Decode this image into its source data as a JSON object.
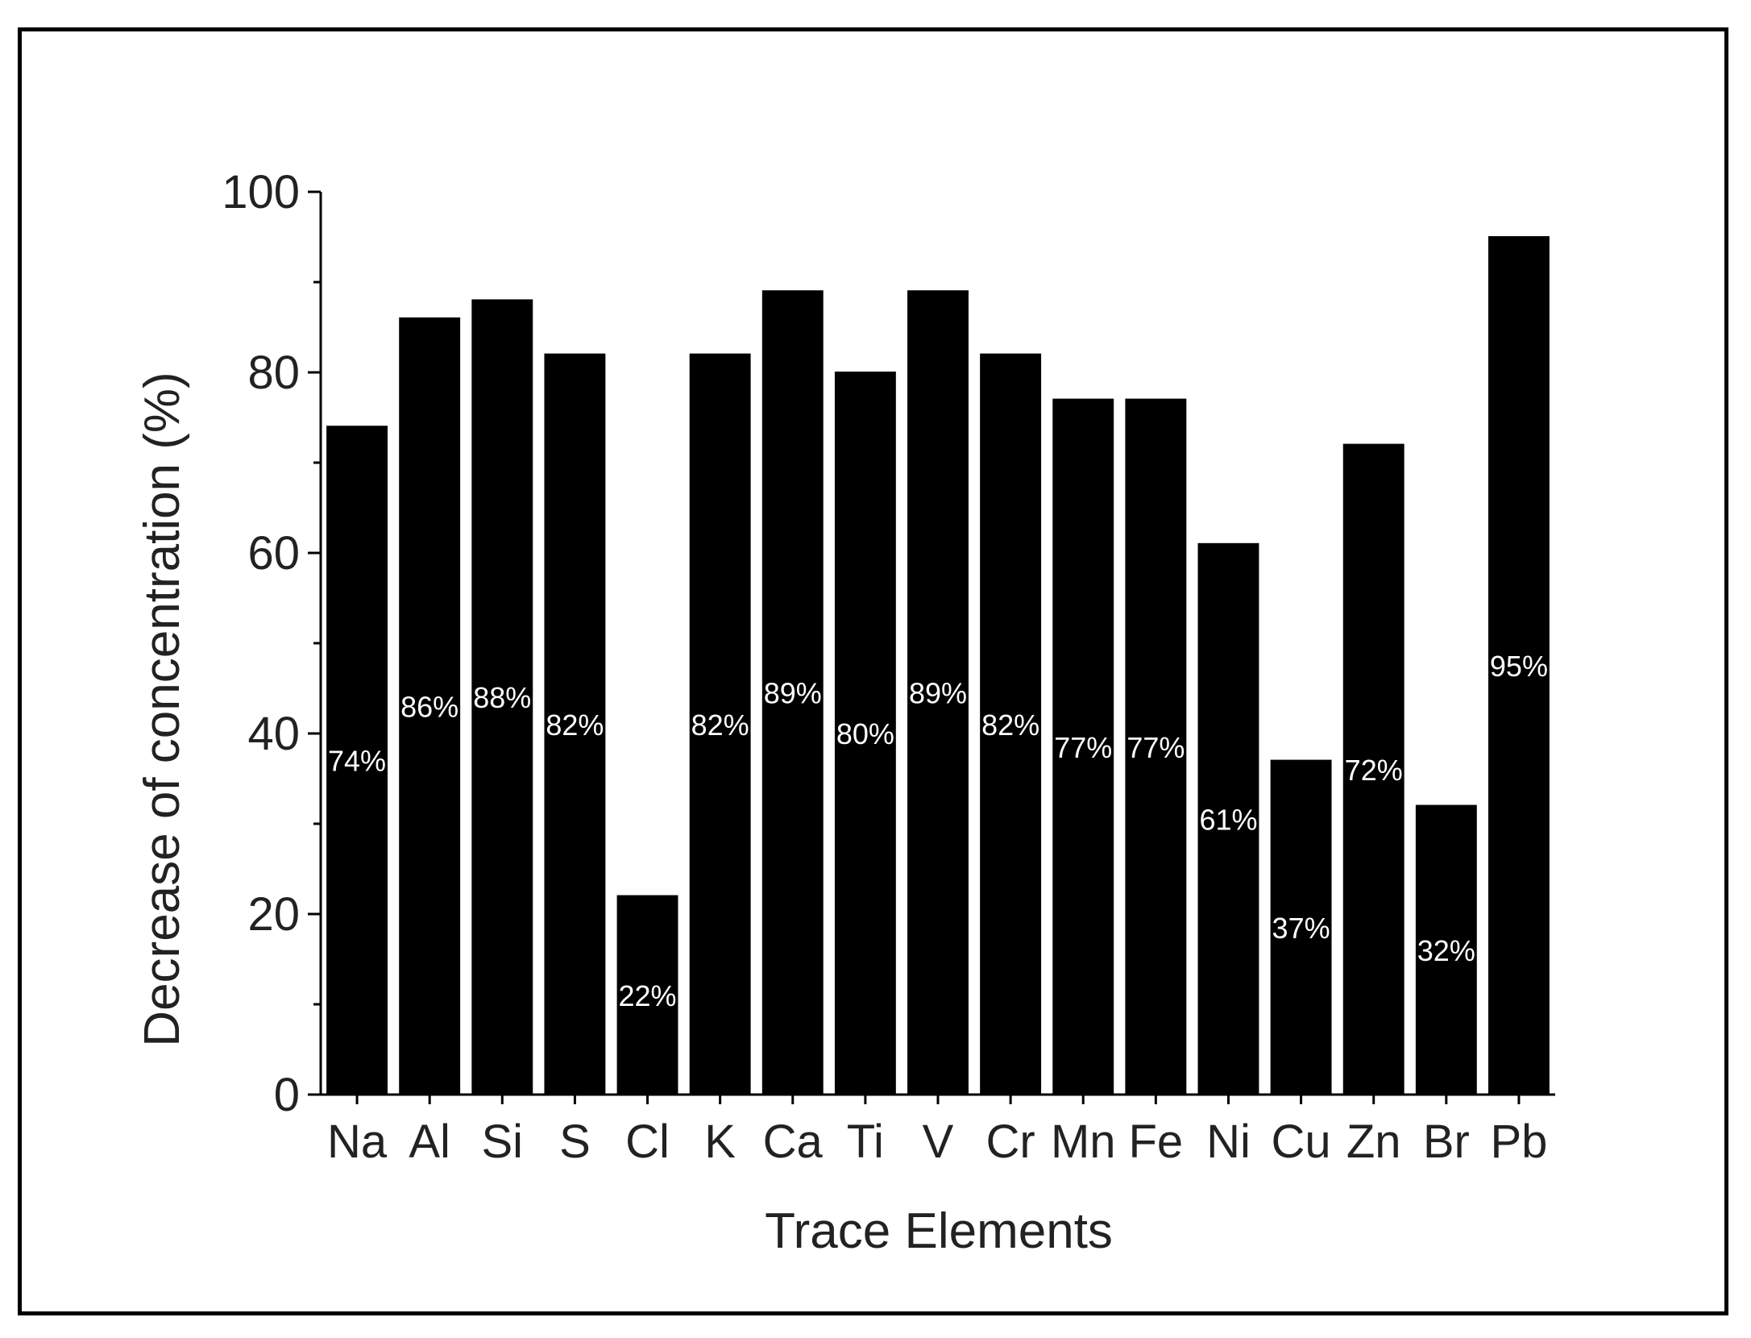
{
  "chart_data": {
    "type": "bar",
    "title": "",
    "xlabel": "Trace Elements",
    "ylabel": "Decrease of concentration (%)",
    "ylim": [
      0,
      100
    ],
    "yticks": [
      0,
      20,
      40,
      60,
      80,
      100
    ],
    "grid": false,
    "categories": [
      "Na",
      "Al",
      "Si",
      "S",
      "Cl",
      "K",
      "Ca",
      "Ti",
      "V",
      "Cr",
      "Mn",
      "Fe",
      "Ni",
      "Cu",
      "Zn",
      "Br",
      "Pb"
    ],
    "values": [
      74,
      86,
      88,
      82,
      22,
      82,
      89,
      80,
      89,
      82,
      77,
      77,
      61,
      37,
      72,
      32,
      95
    ],
    "data_labels": [
      "74%",
      "86%",
      "88%",
      "82%",
      "22%",
      "82%",
      "89%",
      "80%",
      "89%",
      "82%",
      "77%",
      "77%",
      "61%",
      "37%",
      "72%",
      "32%",
      "95%"
    ],
    "bar_color": "#000000",
    "label_color": "#ffffff"
  }
}
